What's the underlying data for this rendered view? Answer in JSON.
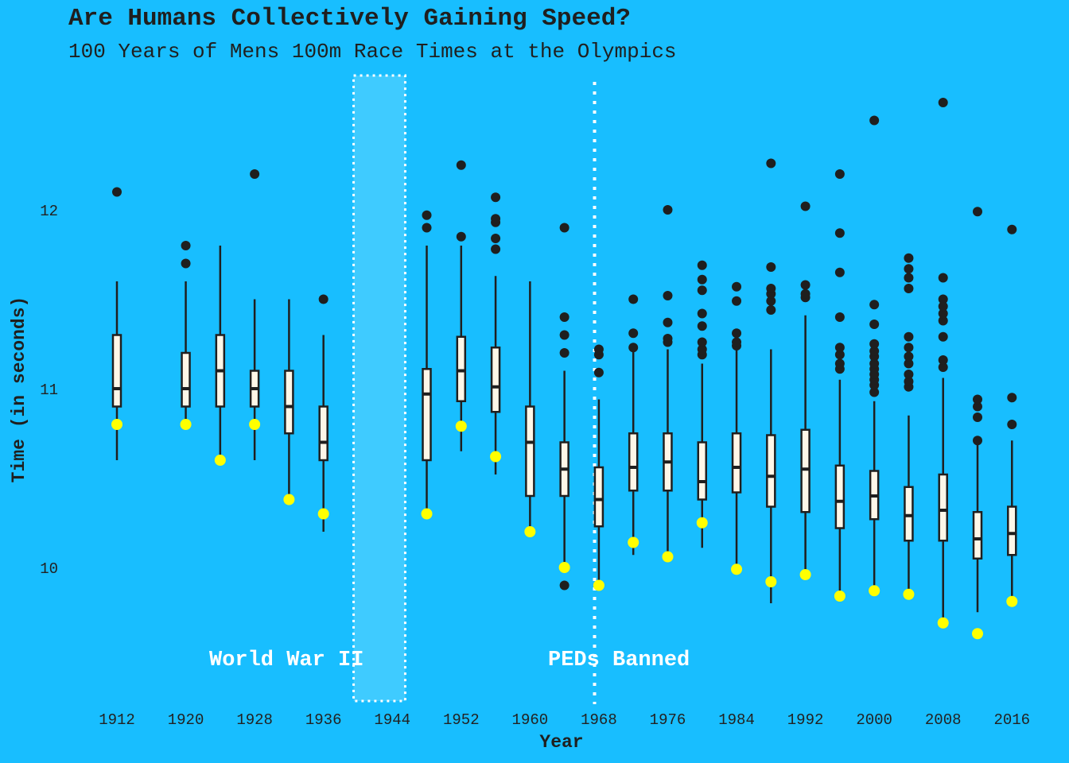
{
  "chart_data": {
    "type": "boxplot",
    "title": "Are Humans Collectively Gaining Speed?",
    "subtitle": "100 Years of Mens 100m Race Times at the Olympics",
    "xlabel": "Year",
    "ylabel": "Time (in seconds)",
    "x_ticks": [
      "1912",
      "1920",
      "1928",
      "1936",
      "1944",
      "1952",
      "1960",
      "1968",
      "1976",
      "1984",
      "1992",
      "2000",
      "2008",
      "2016"
    ],
    "y_ticks": [
      10,
      11,
      12
    ],
    "ylim": [
      9.3,
      12.8
    ],
    "xlim": [
      1906,
      2020
    ],
    "grid": false,
    "colors": {
      "background": "#18beff",
      "box_fill": "#fff7e8",
      "box_line": "#1f1f1f",
      "outlier": "#1f1f1f",
      "winner": "#ffff00",
      "shade": "#3fcbff",
      "annotation": "#ffffff"
    },
    "annotations": [
      {
        "label": "World War II",
        "x_range": [
          1939.5,
          1945.5
        ]
      },
      {
        "label": "PEDs Banned",
        "x": 1967.5
      }
    ],
    "boxes": [
      {
        "year": 1912,
        "whisker_low": 10.6,
        "q1": 10.9,
        "median": 11.0,
        "q3": 11.3,
        "whisker_high": 11.6,
        "outliers": [
          12.1
        ],
        "winner": 10.8
      },
      {
        "year": 1920,
        "whisker_low": 10.8,
        "q1": 10.9,
        "median": 11.0,
        "q3": 11.2,
        "whisker_high": 11.6,
        "outliers": [
          11.7,
          11.8
        ],
        "winner": 10.8
      },
      {
        "year": 1924,
        "whisker_low": 10.6,
        "q1": 10.9,
        "median": 11.1,
        "q3": 11.3,
        "whisker_high": 11.8,
        "outliers": [],
        "winner": 10.6
      },
      {
        "year": 1928,
        "whisker_low": 10.6,
        "q1": 10.9,
        "median": 11.0,
        "q3": 11.1,
        "whisker_high": 11.5,
        "outliers": [
          12.2
        ],
        "winner": 10.8
      },
      {
        "year": 1932,
        "whisker_low": 10.38,
        "q1": 10.75,
        "median": 10.9,
        "q3": 11.1,
        "whisker_high": 11.5,
        "outliers": [],
        "winner": 10.38
      },
      {
        "year": 1936,
        "whisker_low": 10.2,
        "q1": 10.6,
        "median": 10.7,
        "q3": 10.9,
        "whisker_high": 11.3,
        "outliers": [
          11.5
        ],
        "winner": 10.3
      },
      {
        "year": 1948,
        "whisker_low": 10.3,
        "q1": 10.6,
        "median": 10.97,
        "q3": 11.11,
        "whisker_high": 11.8,
        "outliers": [
          11.9,
          11.97
        ],
        "winner": 10.3
      },
      {
        "year": 1952,
        "whisker_low": 10.65,
        "q1": 10.93,
        "median": 11.1,
        "q3": 11.29,
        "whisker_high": 11.8,
        "outliers": [
          11.85,
          12.25
        ],
        "winner": 10.79
      },
      {
        "year": 1956,
        "whisker_low": 10.52,
        "q1": 10.87,
        "median": 11.01,
        "q3": 11.23,
        "whisker_high": 11.63,
        "outliers": [
          11.78,
          11.84,
          11.93,
          11.95,
          12.07
        ],
        "winner": 10.62
      },
      {
        "year": 1960,
        "whisker_low": 10.2,
        "q1": 10.4,
        "median": 10.7,
        "q3": 10.9,
        "whisker_high": 11.6,
        "outliers": [],
        "winner": 10.2
      },
      {
        "year": 1964,
        "whisker_low": 10.0,
        "q1": 10.4,
        "median": 10.55,
        "q3": 10.7,
        "whisker_high": 11.1,
        "outliers": [
          9.9,
          11.2,
          11.3,
          11.4,
          11.9
        ],
        "winner": 10.0
      },
      {
        "year": 1968,
        "whisker_low": 9.9,
        "q1": 10.23,
        "median": 10.38,
        "q3": 10.56,
        "whisker_high": 10.94,
        "outliers": [
          11.09,
          11.19,
          11.22
        ],
        "winner": 9.9
      },
      {
        "year": 1972,
        "whisker_low": 10.07,
        "q1": 10.43,
        "median": 10.56,
        "q3": 10.75,
        "whisker_high": 11.22,
        "outliers": [
          11.23,
          11.31,
          11.5
        ],
        "winner": 10.14
      },
      {
        "year": 1976,
        "whisker_low": 10.06,
        "q1": 10.43,
        "median": 10.59,
        "q3": 10.75,
        "whisker_high": 11.22,
        "outliers": [
          11.26,
          11.28,
          11.37,
          11.52,
          12.0
        ],
        "winner": 10.06
      },
      {
        "year": 1980,
        "whisker_low": 10.11,
        "q1": 10.38,
        "median": 10.48,
        "q3": 10.7,
        "whisker_high": 11.14,
        "outliers": [
          11.19,
          11.22,
          11.26,
          11.35,
          11.42,
          11.55,
          11.61,
          11.69
        ],
        "winner": 10.25
      },
      {
        "year": 1984,
        "whisker_low": 9.99,
        "q1": 10.42,
        "median": 10.56,
        "q3": 10.75,
        "whisker_high": 11.22,
        "outliers": [
          11.24,
          11.26,
          11.31,
          11.49,
          11.57
        ],
        "winner": 9.99
      },
      {
        "year": 1988,
        "whisker_low": 9.8,
        "q1": 10.34,
        "median": 10.51,
        "q3": 10.74,
        "whisker_high": 11.22,
        "outliers": [
          11.44,
          11.49,
          11.53,
          11.56,
          11.68,
          12.26
        ],
        "winner": 9.92
      },
      {
        "year": 1992,
        "whisker_low": 9.96,
        "q1": 10.31,
        "median": 10.55,
        "q3": 10.77,
        "whisker_high": 11.41,
        "outliers": [
          11.51,
          11.53,
          11.58,
          12.02
        ],
        "winner": 9.96
      },
      {
        "year": 1996,
        "whisker_low": 9.84,
        "q1": 10.22,
        "median": 10.37,
        "q3": 10.57,
        "whisker_high": 11.05,
        "outliers": [
          11.11,
          11.14,
          11.19,
          11.23,
          11.4,
          11.65,
          11.87,
          12.2
        ],
        "winner": 9.84
      },
      {
        "year": 2000,
        "whisker_low": 9.87,
        "q1": 10.27,
        "median": 10.4,
        "q3": 10.54,
        "whisker_high": 10.93,
        "outliers": [
          10.98,
          11.02,
          11.05,
          11.08,
          11.11,
          11.14,
          11.18,
          11.21,
          11.25,
          11.36,
          11.47,
          12.5
        ],
        "winner": 9.87
      },
      {
        "year": 2004,
        "whisker_low": 9.85,
        "q1": 10.15,
        "median": 10.29,
        "q3": 10.45,
        "whisker_high": 10.85,
        "outliers": [
          11.01,
          11.04,
          11.08,
          11.14,
          11.18,
          11.23,
          11.29,
          11.56,
          11.62,
          11.67,
          11.73
        ],
        "winner": 9.85
      },
      {
        "year": 2008,
        "whisker_low": 9.69,
        "q1": 10.15,
        "median": 10.32,
        "q3": 10.52,
        "whisker_high": 11.06,
        "outliers": [
          11.12,
          11.16,
          11.29,
          11.38,
          11.42,
          11.46,
          11.5,
          11.62,
          12.6
        ],
        "winner": 9.69
      },
      {
        "year": 2012,
        "whisker_low": 9.75,
        "q1": 10.05,
        "median": 10.16,
        "q3": 10.31,
        "whisker_high": 10.7,
        "outliers": [
          10.71,
          10.84,
          10.9,
          10.94,
          11.99
        ],
        "winner": 9.63
      },
      {
        "year": 2016,
        "whisker_low": 9.81,
        "q1": 10.07,
        "median": 10.19,
        "q3": 10.34,
        "whisker_high": 10.71,
        "outliers": [
          10.8,
          10.95,
          11.89
        ],
        "winner": 9.81
      }
    ]
  }
}
